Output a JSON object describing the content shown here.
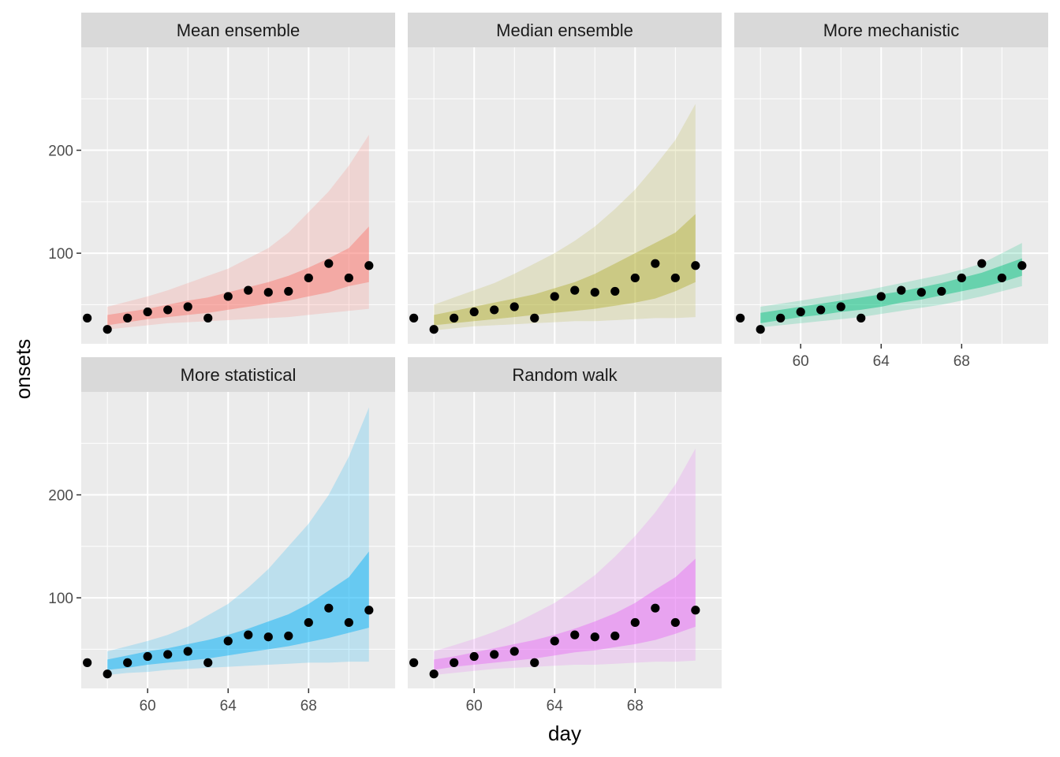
{
  "chart_data": {
    "type": "area",
    "title": "",
    "xlabel": "day",
    "ylabel": "onsets",
    "xlim": [
      56.7,
      72.3
    ],
    "ylim": [
      12,
      300
    ],
    "x_ticks": [
      60,
      64,
      68
    ],
    "y_ticks": [
      100,
      200
    ],
    "layout": "facet wrap, 3 columns x 2 rows",
    "observed": {
      "x": [
        57,
        58,
        59,
        60,
        61,
        62,
        63,
        64,
        65,
        66,
        67,
        68,
        69,
        70,
        71
      ],
      "y": [
        37,
        26,
        37,
        43,
        45,
        48,
        37,
        58,
        64,
        62,
        63,
        76,
        90,
        76,
        88
      ]
    },
    "forecast_x": [
      58,
      59,
      60,
      61,
      62,
      63,
      64,
      65,
      66,
      67,
      68,
      69,
      70,
      71
    ],
    "panels": [
      {
        "name": "Mean ensemble",
        "color": "#F8766D",
        "outer_lower": [
          26,
          28,
          30,
          32,
          33,
          34,
          35,
          36,
          37,
          38,
          40,
          42,
          44,
          46
        ],
        "outer_upper": [
          48,
          53,
          58,
          64,
          71,
          78,
          85,
          95,
          105,
          120,
          140,
          160,
          185,
          215
        ],
        "inner_lower": [
          30,
          33,
          36,
          38,
          40,
          42,
          45,
          48,
          51,
          54,
          58,
          62,
          68,
          72
        ],
        "inner_upper": [
          40,
          43,
          46,
          50,
          54,
          57,
          62,
          67,
          72,
          78,
          86,
          95,
          105,
          126
        ]
      },
      {
        "name": "Median ensemble",
        "color": "#B2B033",
        "outer_lower": [
          25,
          27,
          29,
          30,
          31,
          32,
          33,
          34,
          34,
          35,
          36,
          37,
          37,
          38
        ],
        "outer_upper": [
          50,
          57,
          64,
          71,
          80,
          90,
          100,
          112,
          126,
          143,
          162,
          185,
          210,
          245
        ],
        "inner_lower": [
          30,
          32,
          34,
          36,
          38,
          40,
          42,
          44,
          46,
          49,
          52,
          56,
          63,
          72
        ],
        "inner_upper": [
          40,
          44,
          48,
          52,
          56,
          60,
          66,
          72,
          80,
          90,
          100,
          110,
          120,
          138
        ]
      },
      {
        "name": "More mechanistic",
        "color": "#00BF7D",
        "outer_lower": [
          28,
          30,
          32,
          34,
          36,
          38,
          41,
          44,
          47,
          50,
          54,
          58,
          63,
          68
        ],
        "outer_upper": [
          48,
          51,
          54,
          57,
          60,
          63,
          67,
          71,
          75,
          79,
          84,
          90,
          100,
          110
        ],
        "inner_lower": [
          32,
          35,
          38,
          40,
          43,
          45,
          48,
          52,
          55,
          59,
          63,
          67,
          72,
          78
        ],
        "inner_upper": [
          42,
          45,
          48,
          51,
          54,
          57,
          60,
          63,
          67,
          71,
          76,
          81,
          88,
          95
        ]
      },
      {
        "name": "More statistical",
        "color": "#00B0F6",
        "outer_lower": [
          25,
          27,
          28,
          30,
          31,
          32,
          33,
          34,
          35,
          36,
          37,
          37,
          38,
          38
        ],
        "outer_upper": [
          48,
          53,
          58,
          64,
          72,
          83,
          94,
          110,
          128,
          150,
          172,
          200,
          237,
          285
        ],
        "inner_lower": [
          30,
          32,
          35,
          37,
          39,
          41,
          44,
          47,
          50,
          53,
          57,
          61,
          66,
          71
        ],
        "inner_upper": [
          40,
          44,
          48,
          51,
          55,
          59,
          64,
          70,
          77,
          84,
          94,
          107,
          120,
          145
        ]
      },
      {
        "name": "Random walk",
        "color": "#E76BF3",
        "outer_lower": [
          25,
          27,
          29,
          31,
          32,
          33,
          34,
          35,
          35,
          36,
          37,
          38,
          38,
          39
        ],
        "outer_upper": [
          48,
          54,
          60,
          67,
          75,
          85,
          95,
          108,
          122,
          140,
          160,
          183,
          210,
          245
        ],
        "inner_lower": [
          30,
          33,
          35,
          37,
          39,
          41,
          44,
          47,
          49,
          52,
          55,
          59,
          65,
          72
        ],
        "inner_upper": [
          40,
          43,
          47,
          51,
          55,
          59,
          64,
          70,
          77,
          85,
          95,
          108,
          120,
          138
        ]
      }
    ]
  }
}
